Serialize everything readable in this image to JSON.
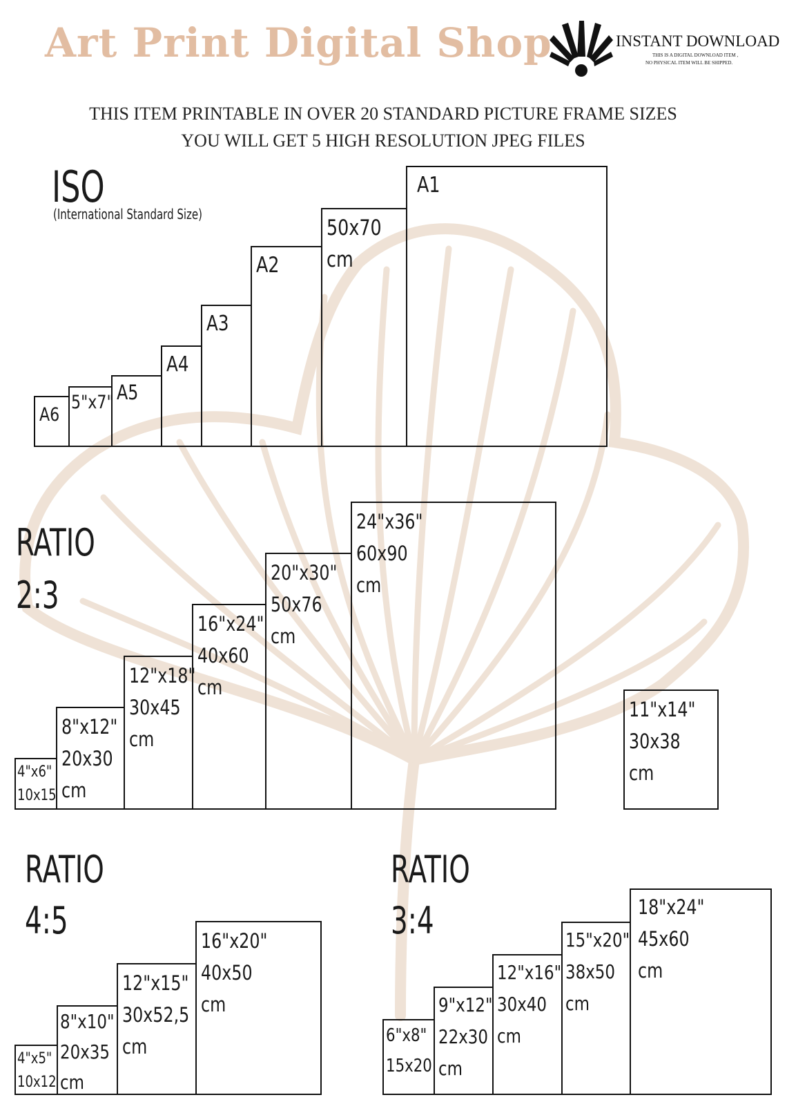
{
  "header": {
    "brand": "Art Print Digital Shop",
    "badge_title": "INSTANT DOWNLOAD",
    "badge_note_1": "THIS IS A DIGITAL DOWNLOAD ITEM ,",
    "badge_note_2": "NO PHYSICAL ITEM WILL BE SHIPPED.",
    "logo_icon": "sunburst-icon"
  },
  "headline": {
    "line1": "THIS ITEM PRINTABLE IN OVER 20 STANDARD PICTURE FRAME SIZES",
    "line2": "YOU WILL GET 5 HIGH RESOLUTION JPEG FILES"
  },
  "iso": {
    "title": "ISO",
    "subtitle": "(International Standard Size)",
    "sizes": [
      {
        "label": "A6",
        "sub": "",
        "unit": ""
      },
      {
        "label": "5\"x7\"",
        "sub": "",
        "unit": ""
      },
      {
        "label": "A5",
        "sub": "",
        "unit": ""
      },
      {
        "label": "A4",
        "sub": "",
        "unit": ""
      },
      {
        "label": "A3",
        "sub": "",
        "unit": ""
      },
      {
        "label": "A2",
        "sub": "",
        "unit": ""
      },
      {
        "label": "50x70",
        "sub": "cm",
        "unit": ""
      },
      {
        "label": "A1",
        "sub": "",
        "unit": ""
      }
    ]
  },
  "ratio_2_3": {
    "title": "RATIO",
    "ratio": "2:3",
    "sizes": [
      {
        "label": "4\"x6\"",
        "sub": "10x15",
        "unit": ""
      },
      {
        "label": "8\"x12\"",
        "sub": "20x30",
        "unit": "cm"
      },
      {
        "label": "12\"x18\"",
        "sub": "30x45",
        "unit": "cm"
      },
      {
        "label": "16\"x24\"",
        "sub": "40x60",
        "unit": "cm"
      },
      {
        "label": "20\"x30\"",
        "sub": "50x76",
        "unit": "cm"
      },
      {
        "label": "24\"x36\"",
        "sub": "60x90",
        "unit": "cm"
      },
      {
        "label": "11\"x14\"",
        "sub": "30x38",
        "unit": "cm"
      }
    ]
  },
  "ratio_4_5": {
    "title": "RATIO",
    "ratio": "4:5",
    "sizes": [
      {
        "label": "4\"x5\"",
        "sub": "10x12",
        "unit": ""
      },
      {
        "label": "8\"x10\"",
        "sub": "20x35",
        "unit": "cm"
      },
      {
        "label": "12\"x15\"",
        "sub": "30x52,5",
        "unit": "cm"
      },
      {
        "label": "16\"x20\"",
        "sub": "40x50",
        "unit": "cm"
      }
    ],
    "extra_unit": "cm"
  },
  "ratio_3_4": {
    "title": "RATIO",
    "ratio": "3:4",
    "sizes": [
      {
        "label": "6\"x8\"",
        "sub": "15x20",
        "unit": ""
      },
      {
        "label": "9\"x12\"",
        "sub": "22x30",
        "unit": "cm"
      },
      {
        "label": "12\"x16\"",
        "sub": "30x40",
        "unit": "cm"
      },
      {
        "label": "15\"x20\"",
        "sub": "38x50",
        "unit": "cm"
      },
      {
        "label": "18\"x24\"",
        "sub": "45x60",
        "unit": "cm"
      }
    ]
  },
  "colors": {
    "brand": "#e2bda2",
    "leaf": "#efe2d6",
    "ink": "#111111"
  },
  "decoration_icon": "ginkgo-leaf-icon"
}
